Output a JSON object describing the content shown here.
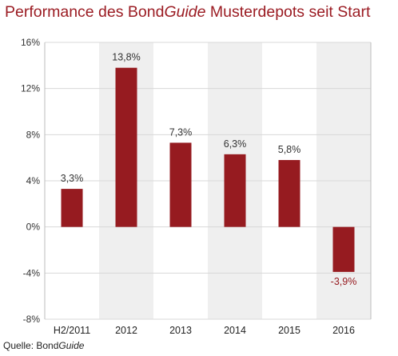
{
  "title": {
    "before": "Performance des Bond",
    "italic": "Guide",
    "after": " Musterdepots seit Start"
  },
  "source": {
    "before": "Quelle: Bond",
    "italic": "Guide"
  },
  "colors": {
    "bar": "#961b20",
    "band": "#efefef",
    "grid": "#d8d8d8",
    "axis": "#bdbdbd",
    "title": "#9b1c23"
  },
  "chart_data": {
    "type": "bar",
    "categories": [
      "H2/2011",
      "2012",
      "2013",
      "2014",
      "2015",
      "2016"
    ],
    "values": [
      3.3,
      13.8,
      7.3,
      6.3,
      5.8,
      -3.9
    ],
    "data_labels": [
      "3,3%",
      "13,8%",
      "7,3%",
      "6,3%",
      "5,8%",
      "-3,9%"
    ],
    "yticks": [
      16,
      12,
      8,
      4,
      0,
      -4,
      -8
    ],
    "ytick_labels": [
      "16%",
      "12%",
      "8%",
      "4%",
      "0%",
      "-4%",
      "-8%"
    ],
    "ylim": [
      -8,
      16
    ],
    "shaded_categories": [
      1,
      3,
      5
    ],
    "grid": true,
    "legend": "none"
  }
}
